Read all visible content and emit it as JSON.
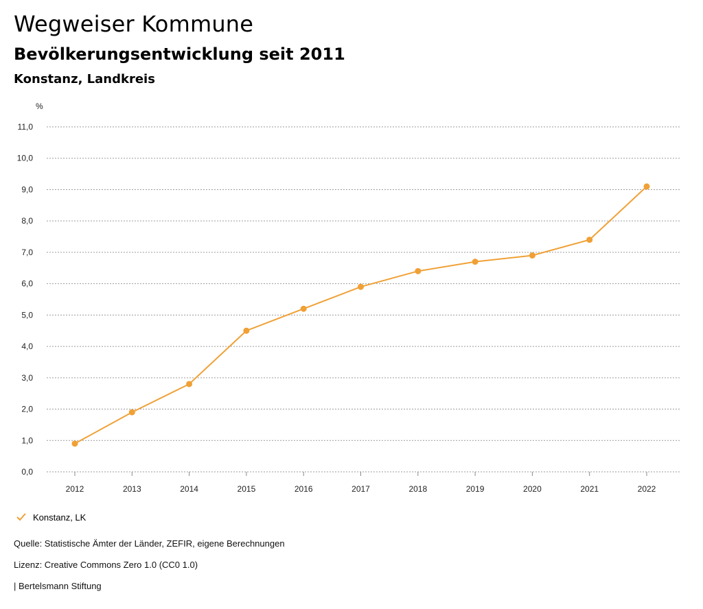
{
  "header": {
    "title": "Wegweiser Kommune",
    "subtitle": "Bevölkerungsentwicklung seit 2011",
    "region": "Konstanz, Landkreis"
  },
  "chart_data": {
    "type": "line",
    "title": "Bevölkerungsentwicklung seit 2011",
    "xlabel": "",
    "ylabel": "%",
    "categories": [
      "2012",
      "2013",
      "2014",
      "2015",
      "2016",
      "2017",
      "2018",
      "2019",
      "2020",
      "2021",
      "2022"
    ],
    "series": [
      {
        "name": "Konstanz, LK",
        "values": [
          0.9,
          1.9,
          2.8,
          4.5,
          5.2,
          5.9,
          6.4,
          6.7,
          6.9,
          7.4,
          9.1
        ]
      }
    ],
    "y_ticks": [
      "0,0",
      "1,0",
      "2,0",
      "3,0",
      "4,0",
      "5,0",
      "6,0",
      "7,0",
      "8,0",
      "9,0",
      "10,0",
      "11,0"
    ],
    "ylim": [
      0,
      11
    ],
    "grid": true,
    "color": "#f0a035"
  },
  "legend": {
    "label": "Konstanz, LK",
    "icon": "check-icon"
  },
  "footer": {
    "source": "Quelle: Statistische Ämter der Länder, ZEFIR, eigene Berechnungen",
    "license": "Lizenz: Creative Commons Zero 1.0 (CC0 1.0)",
    "publisher": "| Bertelsmann Stiftung"
  }
}
